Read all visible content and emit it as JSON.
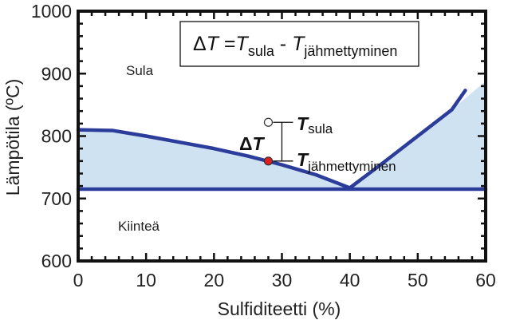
{
  "chart_data": {
    "type": "line",
    "title": "",
    "xlabel": "Sulfiditeetti (%)",
    "ylabel": "Lämpötila (ºC)",
    "xlim": [
      0,
      60
    ],
    "ylim": [
      600,
      1000
    ],
    "xticks": [
      0,
      10,
      20,
      30,
      40,
      50,
      60
    ],
    "yticks": [
      600,
      700,
      800,
      900,
      1000
    ],
    "grid": false,
    "shaded_region": {
      "color": "#cfe2f1",
      "boundary": [
        {
          "x": 0,
          "y": 810
        },
        {
          "x": 5,
          "y": 809
        },
        {
          "x": 10,
          "y": 800
        },
        {
          "x": 15,
          "y": 790
        },
        {
          "x": 20,
          "y": 780
        },
        {
          "x": 25,
          "y": 768
        },
        {
          "x": 30,
          "y": 754
        },
        {
          "x": 35,
          "y": 738
        },
        {
          "x": 40,
          "y": 717
        },
        {
          "x": 45,
          "y": 758
        },
        {
          "x": 50,
          "y": 800
        },
        {
          "x": 55,
          "y": 842
        },
        {
          "x": 60,
          "y": 888
        }
      ]
    },
    "series": [
      {
        "color": "#2b3c9b",
        "x": [
          0,
          5,
          10,
          15,
          20,
          25,
          30,
          35,
          40
        ],
        "y": [
          810,
          809,
          800,
          790,
          780,
          768,
          754,
          738,
          717
        ]
      },
      {
        "color": "#2b3c9b",
        "x": [
          40,
          45,
          50,
          55,
          57
        ],
        "y": [
          717,
          758,
          800,
          842,
          873
        ]
      },
      {
        "color": "#2b3c9b",
        "x": [
          0,
          60
        ],
        "y": [
          715,
          715
        ]
      }
    ],
    "points": [
      {
        "x": 28,
        "y": 760,
        "fill": "#e02020",
        "role": "T_jahmettyminen"
      },
      {
        "x": 28,
        "y": 822,
        "fill": "#ffffff",
        "role": "T_sula"
      }
    ],
    "annotations": {
      "formula": {
        "delta": "Δ",
        "T": "T",
        "eq": " =",
        "T2": "T",
        "sub_sula": "sula",
        "minus": " - ",
        "T3": "T",
        "sub_jah": "jähmettyminen"
      },
      "delta_label": {
        "delta": "Δ",
        "T": "T"
      },
      "t_sula": {
        "T": "T",
        "sub": "sula"
      },
      "t_jah": {
        "T": "T",
        "sub": "jähmettyminen"
      },
      "region_liquid": "Sula",
      "region_solid": "Kiinteä"
    }
  }
}
